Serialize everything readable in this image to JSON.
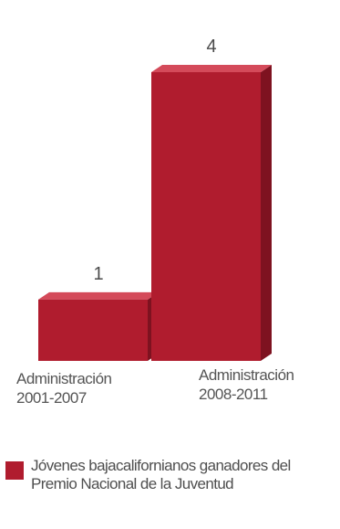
{
  "chart_data": {
    "type": "bar",
    "categories": [
      "Administración\n2001-2007",
      "Administración\n2008-2011"
    ],
    "values": [
      1,
      4
    ],
    "series": [
      {
        "name": "Jóvenes bajacalifornianos ganadores del Premio Nacional de la Juventud",
        "values": [
          1,
          4
        ]
      }
    ],
    "ylim": [
      0,
      4
    ],
    "grid": false,
    "legend_position": "bottom-left",
    "colors": {
      "bar_front": "#b01c2e",
      "bar_top": "#d44a5a",
      "bar_side": "#7e1220"
    }
  }
}
